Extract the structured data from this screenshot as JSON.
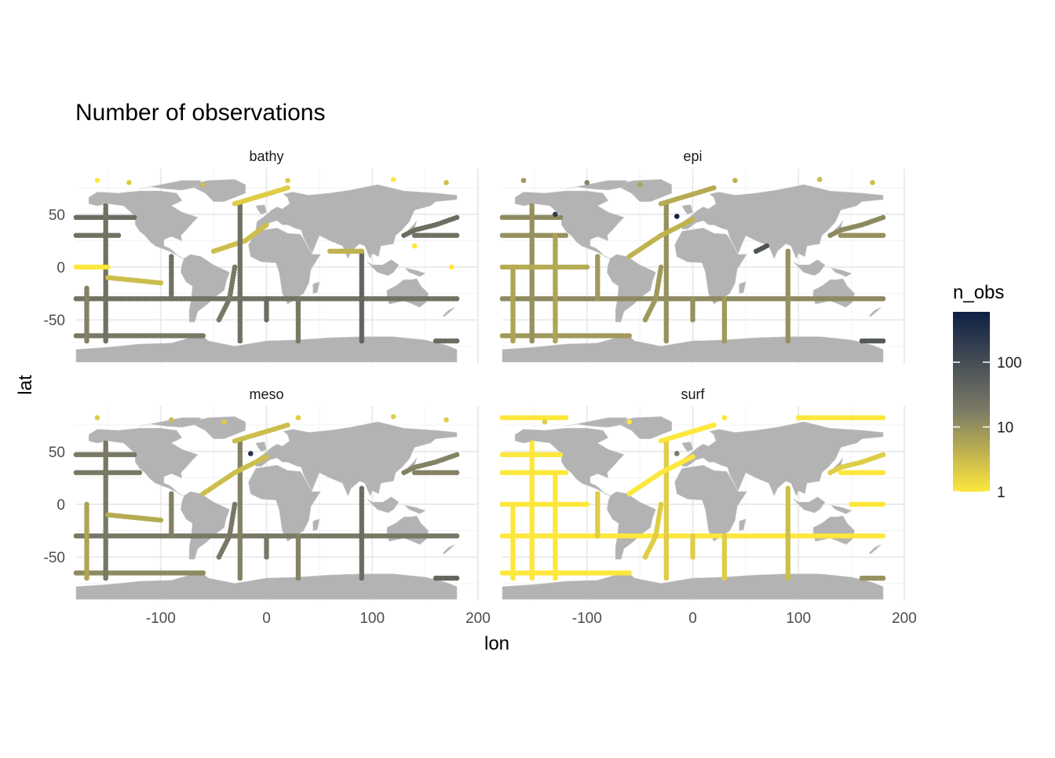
{
  "chart_data": {
    "type": "scatter",
    "title": "Number of observations",
    "xlabel": "lon",
    "ylabel": "lat",
    "xlim": [
      -180,
      200
    ],
    "ylim": [
      -90,
      90
    ],
    "x_ticks": [
      -100,
      0,
      100,
      200
    ],
    "y_ticks": [
      -50,
      0,
      50
    ],
    "grid": true,
    "legend": {
      "title": "n_obs",
      "position": "right",
      "scale": "log10",
      "range": [
        1,
        600
      ],
      "breaks": [
        1,
        10,
        100
      ],
      "break_labels": [
        "1",
        "10",
        "100"
      ],
      "low_color": "#fde73c",
      "mid_color": "#7c7b66",
      "high_color": "#0d1f44"
    },
    "land_color": "#b3b3b3",
    "panels": [
      {
        "name": "bathy",
        "tracks": [
          {
            "lon": [
              -180,
              180
            ],
            "lat": [
              -30,
              -30
            ],
            "n_obs": 25
          },
          {
            "lon": [
              -180,
              -140
            ],
            "lat": [
              30,
              30
            ],
            "n_obs": 25
          },
          {
            "lon": [
              -180,
              -125
            ],
            "lat": [
              47,
              47
            ],
            "n_obs": 30
          },
          {
            "lon": [
              -180,
              -60
            ],
            "lat": [
              -65,
              -65
            ],
            "n_obs": 20
          },
          {
            "lon": [
              -152,
              -152
            ],
            "lat": [
              -70,
              58
            ],
            "n_obs": 25
          },
          {
            "lon": [
              -90,
              -90
            ],
            "lat": [
              -30,
              10
            ],
            "n_obs": 25
          },
          {
            "lon": [
              -170,
              -170
            ],
            "lat": [
              -70,
              -20
            ],
            "n_obs": 15
          },
          {
            "lon": [
              -150,
              -100
            ],
            "lat": [
              -10,
              -15
            ],
            "n_obs": 3
          },
          {
            "lon": [
              -180,
              -150
            ],
            "lat": [
              0,
              0
            ],
            "n_obs": 1
          },
          {
            "lon": [
              -50,
              -20,
              0
            ],
            "lat": [
              15,
              25,
              40
            ],
            "n_obs": 3
          },
          {
            "lon": [
              -25,
              -25
            ],
            "lat": [
              -70,
              60
            ],
            "n_obs": 25
          },
          {
            "lon": [
              -45,
              -35,
              -30
            ],
            "lat": [
              -50,
              -30,
              0
            ],
            "n_obs": 20
          },
          {
            "lon": [
              0,
              0
            ],
            "lat": [
              -50,
              -30
            ],
            "n_obs": 30
          },
          {
            "lon": [
              30,
              30
            ],
            "lat": [
              -70,
              -30
            ],
            "n_obs": 20
          },
          {
            "lon": [
              90,
              90
            ],
            "lat": [
              -70,
              15
            ],
            "n_obs": 40
          },
          {
            "lon": [
              130,
              140,
              160,
              180
            ],
            "lat": [
              30,
              35,
              40,
              47
            ],
            "n_obs": 30
          },
          {
            "lon": [
              140,
              180
            ],
            "lat": [
              30,
              30
            ],
            "n_obs": 25
          },
          {
            "lon": [
              160,
              180
            ],
            "lat": [
              -70,
              -70
            ],
            "n_obs": 30
          },
          {
            "lon": [
              60,
              90
            ],
            "lat": [
              15,
              15
            ],
            "n_obs": 4
          },
          {
            "lon": [
              -30,
              20
            ],
            "lat": [
              60,
              75
            ],
            "n_obs": 2
          }
        ],
        "dots": [
          {
            "lon": -160,
            "lat": 82,
            "n_obs": 1
          },
          {
            "lon": -130,
            "lat": 80,
            "n_obs": 2
          },
          {
            "lon": -60,
            "lat": 78,
            "n_obs": 3
          },
          {
            "lon": 20,
            "lat": 82,
            "n_obs": 2
          },
          {
            "lon": 120,
            "lat": 83,
            "n_obs": 1
          },
          {
            "lon": 170,
            "lat": 80,
            "n_obs": 3
          },
          {
            "lon": 140,
            "lat": 20,
            "n_obs": 1
          },
          {
            "lon": 175,
            "lat": 0,
            "n_obs": 1
          }
        ]
      },
      {
        "name": "epi",
        "tracks": [
          {
            "lon": [
              -180,
              180
            ],
            "lat": [
              -30,
              -30
            ],
            "n_obs": 12
          },
          {
            "lon": [
              -180,
              -120
            ],
            "lat": [
              30,
              30
            ],
            "n_obs": 10
          },
          {
            "lon": [
              -180,
              -125
            ],
            "lat": [
              47,
              47
            ],
            "n_obs": 12
          },
          {
            "lon": [
              -180,
              -60
            ],
            "lat": [
              -65,
              -65
            ],
            "n_obs": 8
          },
          {
            "lon": [
              -152,
              -152
            ],
            "lat": [
              -70,
              58
            ],
            "n_obs": 10
          },
          {
            "lon": [
              -170,
              -170
            ],
            "lat": [
              -70,
              0
            ],
            "n_obs": 6
          },
          {
            "lon": [
              -130,
              -130
            ],
            "lat": [
              -70,
              30
            ],
            "n_obs": 6
          },
          {
            "lon": [
              -180,
              -100
            ],
            "lat": [
              0,
              0
            ],
            "n_obs": 5
          },
          {
            "lon": [
              -90,
              -90
            ],
            "lat": [
              -30,
              10
            ],
            "n_obs": 8
          },
          {
            "lon": [
              -25,
              -25
            ],
            "lat": [
              -70,
              60
            ],
            "n_obs": 10
          },
          {
            "lon": [
              -45,
              -35,
              -30
            ],
            "lat": [
              -50,
              -30,
              0
            ],
            "n_obs": 8
          },
          {
            "lon": [
              -60,
              -30,
              0
            ],
            "lat": [
              10,
              30,
              45
            ],
            "n_obs": 4
          },
          {
            "lon": [
              0,
              0
            ],
            "lat": [
              -50,
              -30
            ],
            "n_obs": 10
          },
          {
            "lon": [
              30,
              30
            ],
            "lat": [
              -70,
              -30
            ],
            "n_obs": 8
          },
          {
            "lon": [
              90,
              90
            ],
            "lat": [
              -70,
              15
            ],
            "n_obs": 10
          },
          {
            "lon": [
              60,
              70
            ],
            "lat": [
              15,
              20
            ],
            "n_obs": 80
          },
          {
            "lon": [
              130,
              140,
              160,
              180
            ],
            "lat": [
              30,
              35,
              40,
              47
            ],
            "n_obs": 12
          },
          {
            "lon": [
              140,
              180
            ],
            "lat": [
              30,
              30
            ],
            "n_obs": 10
          },
          {
            "lon": [
              160,
              180
            ],
            "lat": [
              -70,
              -70
            ],
            "n_obs": 60
          },
          {
            "lon": [
              -30,
              20
            ],
            "lat": [
              60,
              75
            ],
            "n_obs": 5
          }
        ],
        "dots": [
          {
            "lon": -160,
            "lat": 82,
            "n_obs": 8
          },
          {
            "lon": -100,
            "lat": 80,
            "n_obs": 15
          },
          {
            "lon": -50,
            "lat": 78,
            "n_obs": 6
          },
          {
            "lon": 40,
            "lat": 82,
            "n_obs": 4
          },
          {
            "lon": 120,
            "lat": 83,
            "n_obs": 3
          },
          {
            "lon": 170,
            "lat": 80,
            "n_obs": 3
          },
          {
            "lon": -15,
            "lat": 48,
            "n_obs": 500
          },
          {
            "lon": -130,
            "lat": 50,
            "n_obs": 200
          }
        ]
      },
      {
        "name": "meso",
        "tracks": [
          {
            "lon": [
              -180,
              180
            ],
            "lat": [
              -30,
              -30
            ],
            "n_obs": 20
          },
          {
            "lon": [
              -180,
              -120
            ],
            "lat": [
              30,
              30
            ],
            "n_obs": 20
          },
          {
            "lon": [
              -180,
              -125
            ],
            "lat": [
              47,
              47
            ],
            "n_obs": 20
          },
          {
            "lon": [
              -180,
              -60
            ],
            "lat": [
              -65,
              -65
            ],
            "n_obs": 12
          },
          {
            "lon": [
              -152,
              -152
            ],
            "lat": [
              -70,
              58
            ],
            "n_obs": 20
          },
          {
            "lon": [
              -170,
              -170
            ],
            "lat": [
              -70,
              0
            ],
            "n_obs": 6
          },
          {
            "lon": [
              -150,
              -100
            ],
            "lat": [
              -10,
              -15
            ],
            "n_obs": 5
          },
          {
            "lon": [
              -90,
              -90
            ],
            "lat": [
              -30,
              10
            ],
            "n_obs": 15
          },
          {
            "lon": [
              -25,
              -25
            ],
            "lat": [
              -70,
              60
            ],
            "n_obs": 15
          },
          {
            "lon": [
              -45,
              -35,
              -30
            ],
            "lat": [
              -50,
              -30,
              0
            ],
            "n_obs": 20
          },
          {
            "lon": [
              -60,
              -30,
              0
            ],
            "lat": [
              10,
              30,
              45
            ],
            "n_obs": 3
          },
          {
            "lon": [
              0,
              0
            ],
            "lat": [
              -50,
              -30
            ],
            "n_obs": 20
          },
          {
            "lon": [
              30,
              30
            ],
            "lat": [
              -70,
              -30
            ],
            "n_obs": 15
          },
          {
            "lon": [
              90,
              90
            ],
            "lat": [
              -70,
              15
            ],
            "n_obs": 30
          },
          {
            "lon": [
              130,
              140,
              160,
              180
            ],
            "lat": [
              30,
              35,
              40,
              47
            ],
            "n_obs": 15
          },
          {
            "lon": [
              140,
              180
            ],
            "lat": [
              30,
              30
            ],
            "n_obs": 15
          },
          {
            "lon": [
              160,
              180
            ],
            "lat": [
              -70,
              -70
            ],
            "n_obs": 40
          },
          {
            "lon": [
              -30,
              20
            ],
            "lat": [
              60,
              75
            ],
            "n_obs": 3
          }
        ],
        "dots": [
          {
            "lon": -160,
            "lat": 82,
            "n_obs": 2
          },
          {
            "lon": -90,
            "lat": 80,
            "n_obs": 3
          },
          {
            "lon": -40,
            "lat": 78,
            "n_obs": 2
          },
          {
            "lon": 30,
            "lat": 82,
            "n_obs": 2
          },
          {
            "lon": 120,
            "lat": 83,
            "n_obs": 2
          },
          {
            "lon": 170,
            "lat": 80,
            "n_obs": 2
          },
          {
            "lon": -15,
            "lat": 48,
            "n_obs": 300
          }
        ]
      },
      {
        "name": "surf",
        "tracks": [
          {
            "lon": [
              -180,
              180
            ],
            "lat": [
              -30,
              -30
            ],
            "n_obs": 1
          },
          {
            "lon": [
              -180,
              -120
            ],
            "lat": [
              30,
              30
            ],
            "n_obs": 1
          },
          {
            "lon": [
              -180,
              -125
            ],
            "lat": [
              47,
              47
            ],
            "n_obs": 1
          },
          {
            "lon": [
              -180,
              -60
            ],
            "lat": [
              -65,
              -65
            ],
            "n_obs": 1
          },
          {
            "lon": [
              -152,
              -152
            ],
            "lat": [
              -70,
              58
            ],
            "n_obs": 1
          },
          {
            "lon": [
              -170,
              -170
            ],
            "lat": [
              -70,
              0
            ],
            "n_obs": 1
          },
          {
            "lon": [
              -130,
              -130
            ],
            "lat": [
              -70,
              30
            ],
            "n_obs": 1
          },
          {
            "lon": [
              -180,
              -100
            ],
            "lat": [
              0,
              0
            ],
            "n_obs": 1
          },
          {
            "lon": [
              -90,
              -90
            ],
            "lat": [
              -30,
              10
            ],
            "n_obs": 2
          },
          {
            "lon": [
              -25,
              -25
            ],
            "lat": [
              -70,
              60
            ],
            "n_obs": 2
          },
          {
            "lon": [
              -45,
              -35,
              -30
            ],
            "lat": [
              -50,
              -30,
              0
            ],
            "n_obs": 2
          },
          {
            "lon": [
              -60,
              -30,
              0
            ],
            "lat": [
              10,
              30,
              45
            ],
            "n_obs": 1
          },
          {
            "lon": [
              0,
              0
            ],
            "lat": [
              -50,
              -30
            ],
            "n_obs": 2
          },
          {
            "lon": [
              30,
              30
            ],
            "lat": [
              -70,
              -30
            ],
            "n_obs": 2
          },
          {
            "lon": [
              90,
              90
            ],
            "lat": [
              -70,
              15
            ],
            "n_obs": 3
          },
          {
            "lon": [
              130,
              140,
              160,
              180
            ],
            "lat": [
              30,
              35,
              40,
              47
            ],
            "n_obs": 2
          },
          {
            "lon": [
              140,
              180
            ],
            "lat": [
              30,
              30
            ],
            "n_obs": 1
          },
          {
            "lon": [
              160,
              180
            ],
            "lat": [
              -70,
              -70
            ],
            "n_obs": 10
          },
          {
            "lon": [
              150,
              180
            ],
            "lat": [
              0,
              0
            ],
            "n_obs": 1
          },
          {
            "lon": [
              -180,
              -120
            ],
            "lat": [
              82,
              82
            ],
            "n_obs": 1
          },
          {
            "lon": [
              100,
              180
            ],
            "lat": [
              82,
              82
            ],
            "n_obs": 1
          },
          {
            "lon": [
              -30,
              20
            ],
            "lat": [
              60,
              75
            ],
            "n_obs": 1
          }
        ],
        "dots": [
          {
            "lon": -140,
            "lat": 78,
            "n_obs": 2
          },
          {
            "lon": -60,
            "lat": 78,
            "n_obs": 1
          },
          {
            "lon": 30,
            "lat": 82,
            "n_obs": 1
          },
          {
            "lon": -15,
            "lat": 48,
            "n_obs": 20
          }
        ]
      }
    ]
  }
}
